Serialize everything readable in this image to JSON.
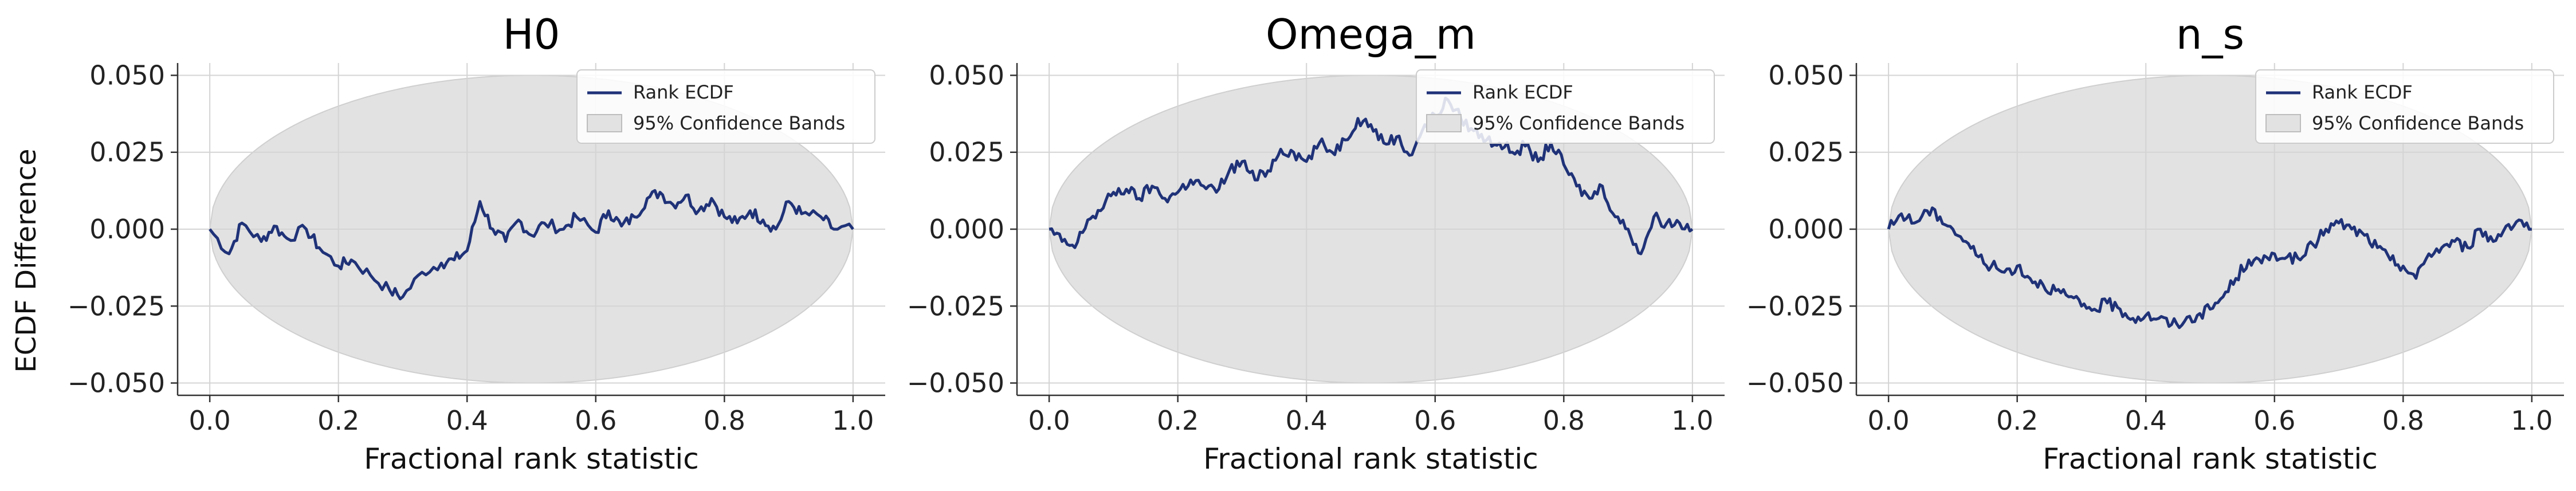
{
  "figure": {
    "ylabel_shared": "ECDF Difference",
    "colors": {
      "line": "#1f3278",
      "band": "#e2e2e2",
      "grid": "#d4d4d4"
    }
  },
  "chart_data": [
    {
      "type": "line",
      "title": "H0",
      "xlabel": "Fractional rank statistic",
      "ylabel": "ECDF Difference",
      "xlim": [
        -0.05,
        1.05
      ],
      "ylim": [
        -0.054,
        0.054
      ],
      "xticks": [
        "0.0",
        "0.2",
        "0.4",
        "0.6",
        "0.8",
        "1.0"
      ],
      "yticks": [
        "0.050",
        "0.025",
        "0.000",
        "−0.025",
        "−0.050"
      ],
      "grid": true,
      "legend": {
        "position": "top-right",
        "entries": [
          "Rank ECDF",
          "95% Confidence Bands"
        ]
      },
      "band_halfwidth": 0.05,
      "series": [
        {
          "name": "Rank ECDF",
          "x": [
            0.0,
            0.03,
            0.05,
            0.08,
            0.1,
            0.12,
            0.15,
            0.17,
            0.2,
            0.22,
            0.25,
            0.28,
            0.3,
            0.33,
            0.36,
            0.38,
            0.4,
            0.42,
            0.44,
            0.46,
            0.48,
            0.5,
            0.52,
            0.55,
            0.57,
            0.6,
            0.62,
            0.64,
            0.66,
            0.68,
            0.7,
            0.72,
            0.74,
            0.76,
            0.78,
            0.8,
            0.82,
            0.84,
            0.86,
            0.88,
            0.9,
            0.92,
            0.95,
            0.97,
            1.0
          ],
          "y": [
            0.0,
            -0.008,
            0.002,
            -0.004,
            0.001,
            -0.003,
            0.0,
            -0.006,
            -0.012,
            -0.01,
            -0.015,
            -0.02,
            -0.022,
            -0.014,
            -0.011,
            -0.01,
            -0.007,
            0.009,
            0.0,
            -0.004,
            0.003,
            -0.002,
            0.002,
            0.0,
            0.004,
            -0.001,
            0.006,
            0.001,
            0.004,
            0.01,
            0.012,
            0.008,
            0.011,
            0.006,
            0.01,
            0.004,
            0.002,
            0.006,
            0.003,
            0.0,
            0.009,
            0.005,
            0.004,
            0.0,
            0.0
          ]
        }
      ]
    },
    {
      "type": "line",
      "title": "Omega_m",
      "xlabel": "Fractional rank statistic",
      "ylabel": "",
      "xlim": [
        -0.05,
        1.05
      ],
      "ylim": [
        -0.054,
        0.054
      ],
      "xticks": [
        "0.0",
        "0.2",
        "0.4",
        "0.6",
        "0.8",
        "1.0"
      ],
      "yticks": [
        "0.050",
        "0.025",
        "0.000",
        "−0.025",
        "−0.050"
      ],
      "grid": true,
      "legend": {
        "position": "top-right",
        "entries": [
          "Rank ECDF",
          "95% Confidence Bands"
        ]
      },
      "band_halfwidth": 0.05,
      "series": [
        {
          "name": "Rank ECDF",
          "x": [
            0.0,
            0.02,
            0.04,
            0.06,
            0.08,
            0.1,
            0.12,
            0.14,
            0.16,
            0.18,
            0.2,
            0.22,
            0.24,
            0.26,
            0.28,
            0.3,
            0.32,
            0.34,
            0.36,
            0.38,
            0.4,
            0.42,
            0.44,
            0.46,
            0.48,
            0.5,
            0.52,
            0.54,
            0.56,
            0.58,
            0.6,
            0.62,
            0.64,
            0.66,
            0.68,
            0.7,
            0.72,
            0.74,
            0.76,
            0.78,
            0.8,
            0.82,
            0.84,
            0.86,
            0.88,
            0.9,
            0.92,
            0.94,
            0.96,
            0.98,
            1.0
          ],
          "y": [
            0.0,
            -0.004,
            -0.006,
            0.003,
            0.006,
            0.012,
            0.013,
            0.01,
            0.014,
            0.01,
            0.012,
            0.016,
            0.014,
            0.012,
            0.019,
            0.022,
            0.016,
            0.019,
            0.026,
            0.025,
            0.022,
            0.028,
            0.025,
            0.029,
            0.036,
            0.034,
            0.028,
            0.03,
            0.024,
            0.032,
            0.037,
            0.042,
            0.036,
            0.032,
            0.029,
            0.028,
            0.025,
            0.027,
            0.022,
            0.028,
            0.021,
            0.014,
            0.01,
            0.014,
            0.004,
            0.0,
            -0.008,
            0.004,
            0.002,
            0.002,
            0.0
          ]
        }
      ]
    },
    {
      "type": "line",
      "title": "n_s",
      "xlabel": "Fractional rank statistic",
      "ylabel": "",
      "xlim": [
        -0.05,
        1.05
      ],
      "ylim": [
        -0.054,
        0.054
      ],
      "xticks": [
        "0.0",
        "0.2",
        "0.4",
        "0.6",
        "0.8",
        "1.0"
      ],
      "yticks": [
        "0.050",
        "0.025",
        "0.000",
        "−0.025",
        "−0.050"
      ],
      "grid": true,
      "legend": {
        "position": "top-right",
        "entries": [
          "Rank ECDF",
          "95% Confidence Bands"
        ]
      },
      "band_halfwidth": 0.05,
      "series": [
        {
          "name": "Rank ECDF",
          "x": [
            0.0,
            0.02,
            0.04,
            0.06,
            0.08,
            0.1,
            0.12,
            0.14,
            0.16,
            0.18,
            0.2,
            0.22,
            0.24,
            0.26,
            0.28,
            0.3,
            0.32,
            0.34,
            0.36,
            0.38,
            0.4,
            0.42,
            0.44,
            0.46,
            0.48,
            0.5,
            0.52,
            0.54,
            0.56,
            0.58,
            0.6,
            0.62,
            0.64,
            0.66,
            0.68,
            0.7,
            0.72,
            0.74,
            0.76,
            0.78,
            0.8,
            0.82,
            0.84,
            0.86,
            0.88,
            0.9,
            0.92,
            0.94,
            0.96,
            0.98,
            1.0
          ],
          "y": [
            0.0,
            0.005,
            0.002,
            0.006,
            0.004,
            0.0,
            -0.004,
            -0.009,
            -0.012,
            -0.014,
            -0.012,
            -0.016,
            -0.018,
            -0.02,
            -0.022,
            -0.025,
            -0.026,
            -0.024,
            -0.026,
            -0.029,
            -0.028,
            -0.029,
            -0.031,
            -0.03,
            -0.028,
            -0.026,
            -0.022,
            -0.016,
            -0.01,
            -0.011,
            -0.008,
            -0.009,
            -0.01,
            -0.005,
            0.0,
            0.002,
            0.0,
            -0.002,
            -0.006,
            -0.01,
            -0.012,
            -0.016,
            -0.008,
            -0.006,
            -0.004,
            -0.006,
            0.0,
            -0.004,
            0.001,
            0.003,
            0.0
          ]
        }
      ]
    }
  ]
}
